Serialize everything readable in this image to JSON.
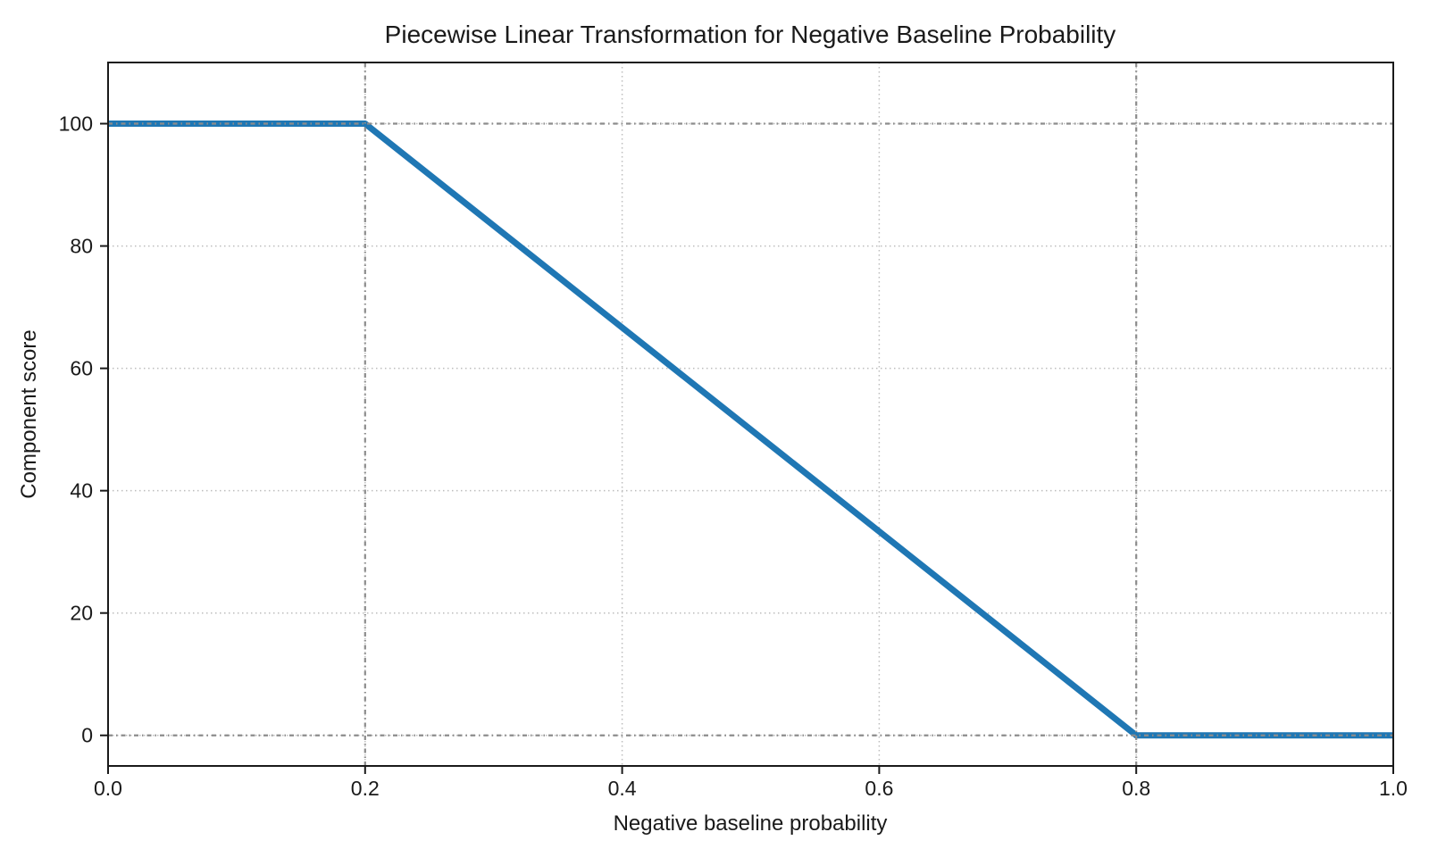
{
  "chart_data": {
    "type": "line",
    "title": "Piecewise Linear Transformation for Negative Baseline Probability",
    "xlabel": "Negative baseline probability",
    "ylabel": "Component score",
    "xlim": [
      0,
      1
    ],
    "ylim": [
      -5,
      110
    ],
    "xticks": [
      "0.0",
      "0.2",
      "0.4",
      "0.6",
      "0.8",
      "1.0"
    ],
    "xtick_values": [
      0,
      0.2,
      0.4,
      0.6,
      0.8,
      1.0
    ],
    "yticks": [
      "0",
      "20",
      "40",
      "60",
      "80",
      "100"
    ],
    "ytick_values": [
      0,
      20,
      40,
      60,
      80,
      100
    ],
    "grid": {
      "on": true,
      "style": "dotted",
      "color": "#bdbdbd"
    },
    "reference_lines": {
      "x": [
        0.2,
        0.8
      ],
      "y": [
        100,
        0
      ],
      "style": "dash-dot",
      "color": "#8c8c8c"
    },
    "series": [
      {
        "name": "component-score-transform",
        "color": "#1f77b4",
        "line_width": 7,
        "points": [
          [
            0,
            100
          ],
          [
            0.2,
            100
          ],
          [
            0.8,
            0
          ],
          [
            1.0,
            0
          ]
        ]
      }
    ],
    "colors": {
      "spine": "#1a1a1a",
      "text": "#1a1a1a",
      "background": "#ffffff"
    },
    "legend": null
  }
}
